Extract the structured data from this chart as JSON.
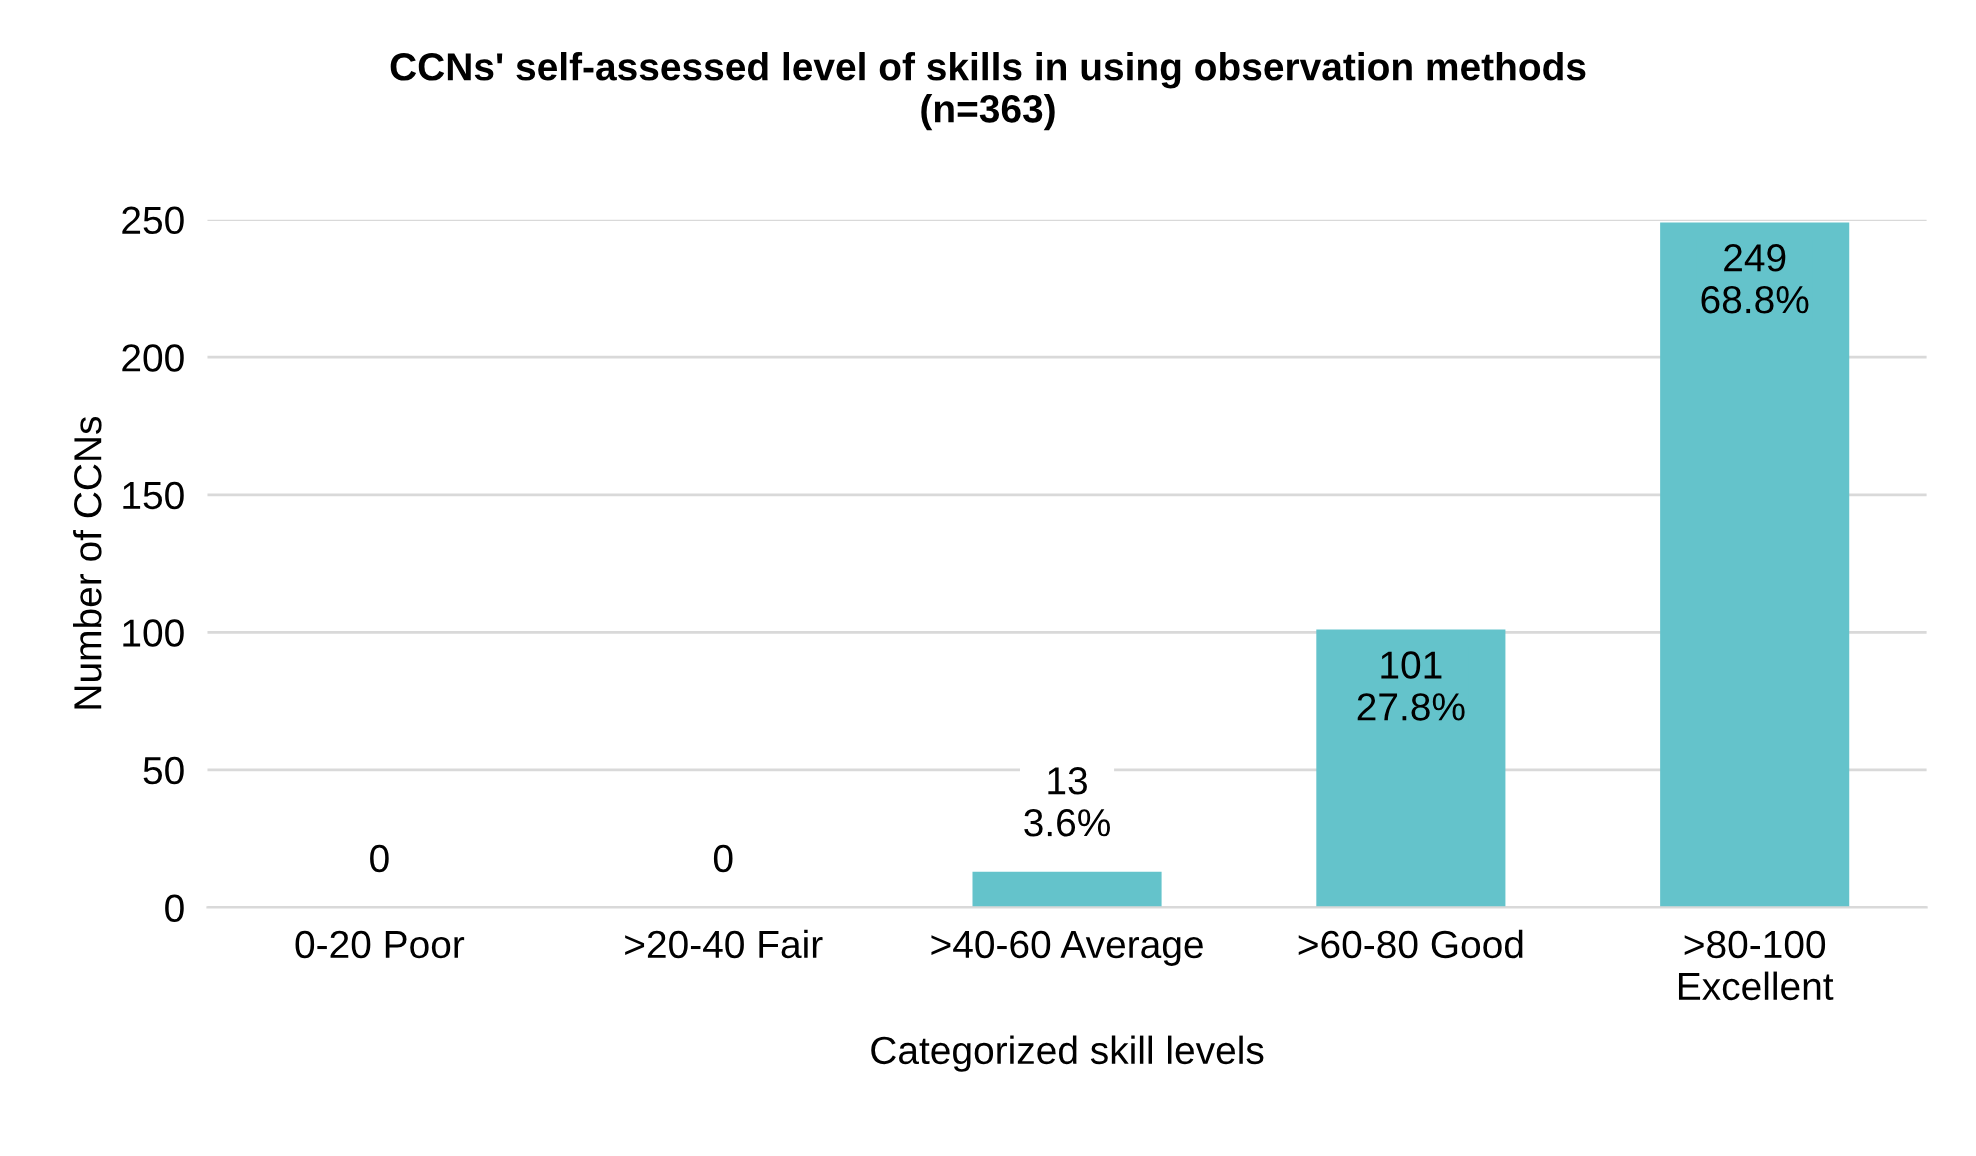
{
  "chart_data": {
    "type": "bar",
    "title": "CCNs' self-assessed level of skills in using observation methods\n(n=363)",
    "xlabel": "Categorized skill levels",
    "ylabel": "Number of CCNs",
    "categories": [
      "0-20 Poor",
      ">20-40 Fair",
      ">40-60 Average",
      ">60-80 Good",
      ">80-100\nExcellent"
    ],
    "values": [
      0,
      0,
      13,
      101,
      249
    ],
    "value_labels": [
      "0",
      "0",
      "13\n3.6%",
      "101\n27.8%",
      "249\n68.8%"
    ],
    "color": "#64c3cb",
    "ylim": [
      0,
      250
    ],
    "yticks": [
      0,
      50,
      100,
      150,
      200,
      250
    ],
    "grid": "y",
    "legend": false
  }
}
